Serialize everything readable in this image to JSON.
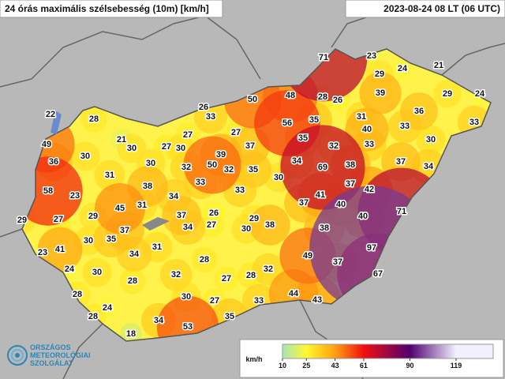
{
  "header": {
    "title": "24 órás maximális szélsebesség (10m) [km/h]",
    "timestamp": "2023-08-24 08 LT (06 UTC)"
  },
  "stations": [
    71,
    23,
    24,
    21,
    29,
    50,
    48,
    28,
    26,
    39,
    29,
    24,
    26,
    33,
    56,
    35,
    31,
    36,
    28,
    33,
    33,
    22,
    49,
    21,
    27,
    27,
    40,
    30,
    30,
    27,
    30,
    37,
    35,
    32,
    33,
    36,
    30,
    39,
    34,
    69,
    38,
    37,
    34,
    30,
    32,
    50,
    32,
    35,
    30,
    31,
    58,
    38,
    33,
    37,
    42,
    23,
    34,
    33,
    41,
    40,
    45,
    31,
    37,
    71,
    29,
    27,
    29,
    37,
    26,
    29,
    40,
    34,
    27,
    30,
    38,
    37,
    38,
    30,
    35,
    23,
    41,
    31,
    34,
    97,
    49,
    37,
    24,
    30,
    28,
    32,
    28,
    32,
    27,
    28,
    67,
    28,
    30,
    27,
    33,
    44,
    43,
    24,
    28,
    34,
    35,
    53,
    18
  ],
  "legend": {
    "unit": "km/h",
    "ticks": [
      10,
      25,
      43,
      61,
      90,
      119
    ],
    "colors": [
      "#a8e4b8",
      "#fff830",
      "#ffa010",
      "#f01010",
      "#500070",
      "#f0f0ff"
    ]
  },
  "logo": {
    "lines": [
      "ORSZÁGOS",
      "METEOROLÓGIAI",
      "SZOLGÁLAT"
    ]
  }
}
